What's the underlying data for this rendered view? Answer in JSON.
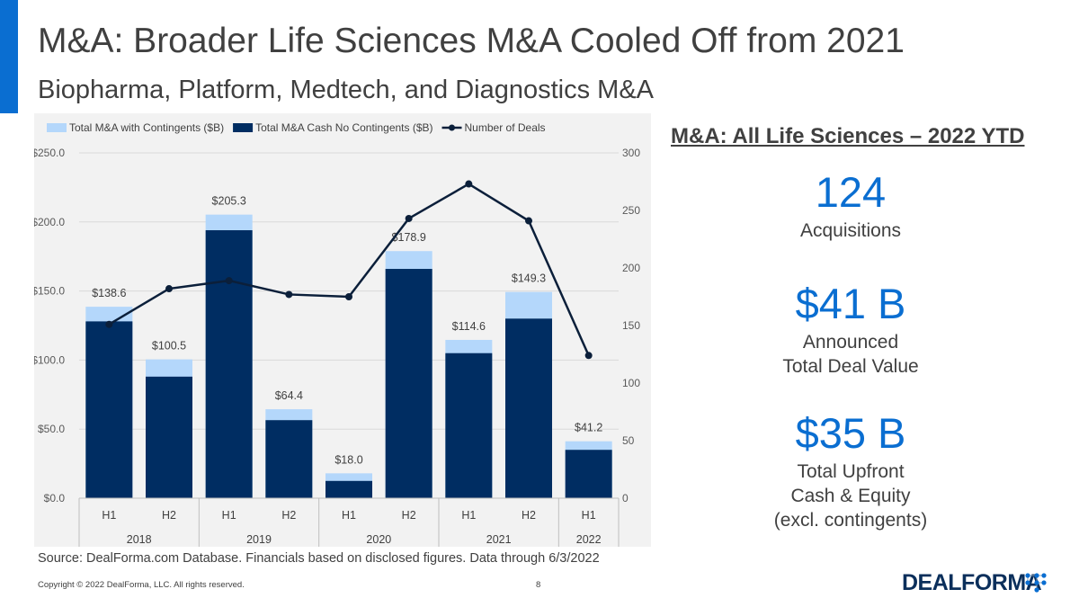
{
  "header": {
    "title": "M&A: Broader Life Sciences M&A Cooled Off from 2021",
    "subtitle": "Biopharma, Platform, Medtech, and Diagnostics M&A"
  },
  "colors": {
    "accent": "#0a6ed1",
    "total_with_contingents": "#b4d7fb",
    "cash_no_contingents": "#002d62",
    "deals_line": "#0b1f3a"
  },
  "chart_data": {
    "type": "bar",
    "categories": [
      "H1",
      "H2",
      "H1",
      "H2",
      "H1",
      "H2",
      "H1",
      "H2",
      "H1"
    ],
    "years": [
      {
        "label": "2018",
        "span": 2
      },
      {
        "label": "2019",
        "span": 2
      },
      {
        "label": "2020",
        "span": 2
      },
      {
        "label": "2021",
        "span": 2
      },
      {
        "label": "2022",
        "span": 1
      }
    ],
    "series": [
      {
        "name": "Total M&A with Contingents ($B)",
        "type": "bar",
        "axis": "left",
        "values": [
          138.6,
          100.5,
          205.3,
          64.4,
          18.0,
          178.9,
          114.6,
          149.3,
          41.2
        ],
        "labels": [
          "$138.6",
          "$100.5",
          "$205.3",
          "$64.4",
          "$18.0",
          "$178.9",
          "$114.6",
          "$149.3",
          "$41.2"
        ]
      },
      {
        "name": "Total M&A Cash No Contingents ($B)",
        "type": "bar",
        "axis": "left",
        "values": [
          128,
          88,
          194,
          56.5,
          12.5,
          166,
          105,
          130,
          35
        ]
      },
      {
        "name": "Number of Deals",
        "type": "line",
        "axis": "right",
        "values": [
          151,
          182,
          189,
          177,
          175,
          243,
          273,
          241,
          124
        ]
      }
    ],
    "y_left": {
      "min": 0,
      "max": 250,
      "ticks": [
        "$0.0",
        "$50.0",
        "$100.0",
        "$150.0",
        "$200.0",
        "$250.0"
      ]
    },
    "y_right": {
      "min": 0,
      "max": 300,
      "ticks": [
        "0",
        "50",
        "100",
        "150",
        "200",
        "250",
        "300"
      ]
    },
    "grid": true,
    "legend_position": "top"
  },
  "kpis": {
    "heading": "M&A: All Life Sciences – 2022 YTD",
    "items": [
      {
        "value": "124",
        "label_lines": [
          "Acquisitions"
        ]
      },
      {
        "value": "$41 B",
        "label_lines": [
          "Announced",
          "Total Deal Value"
        ]
      },
      {
        "value": "$35 B",
        "label_lines": [
          "Total Upfront",
          "Cash & Equity",
          "(excl. contingents)"
        ]
      }
    ]
  },
  "footer": {
    "source": "Source: DealForma.com Database. Financials based on disclosed figures. Data through 6/3/2022",
    "copyright": "Copyright © 2022 DealForma, LLC. All rights reserved.",
    "page_number": "8",
    "logo_text": "DEALFORMA"
  }
}
